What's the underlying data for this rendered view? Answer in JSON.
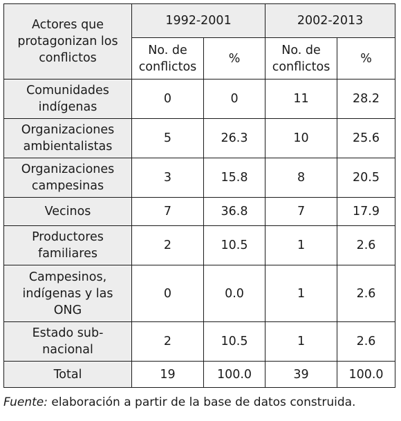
{
  "header": {
    "actor_col": "Actores que protagonizan los conflictos",
    "period1": "1992-2001",
    "period2": "2002-2013",
    "count_label": "No. de conflictos",
    "pct_label": "%"
  },
  "rows": [
    {
      "actor": "Comunidades indígenas",
      "n1": "0",
      "p1": "0",
      "n2": "11",
      "p2": "28.2"
    },
    {
      "actor": "Organizaciones ambientalistas",
      "n1": "5",
      "p1": "26.3",
      "n2": "10",
      "p2": "25.6"
    },
    {
      "actor": "Organizaciones campesinas",
      "n1": "3",
      "p1": "15.8",
      "n2": "8",
      "p2": "20.5"
    },
    {
      "actor": "Vecinos",
      "n1": "7",
      "p1": "36.8",
      "n2": "7",
      "p2": "17.9"
    },
    {
      "actor": "Productores familiares",
      "n1": "2",
      "p1": "10.5",
      "n2": "1",
      "p2": "2.6"
    },
    {
      "actor": "Campesinos, indígenas y las ONG",
      "n1": "0",
      "p1": "0.0",
      "n2": "1",
      "p2": "2.6"
    },
    {
      "actor": "Estado sub-nacional",
      "n1": "2",
      "p1": "10.5",
      "n2": "1",
      "p2": "2.6"
    }
  ],
  "total": {
    "label": "Total",
    "n1": "19",
    "p1": "100.0",
    "n2": "39",
    "p2": "100.0"
  },
  "source": {
    "label": "Fuente:",
    "text": " elaboración a partir de la base de datos construida."
  }
}
